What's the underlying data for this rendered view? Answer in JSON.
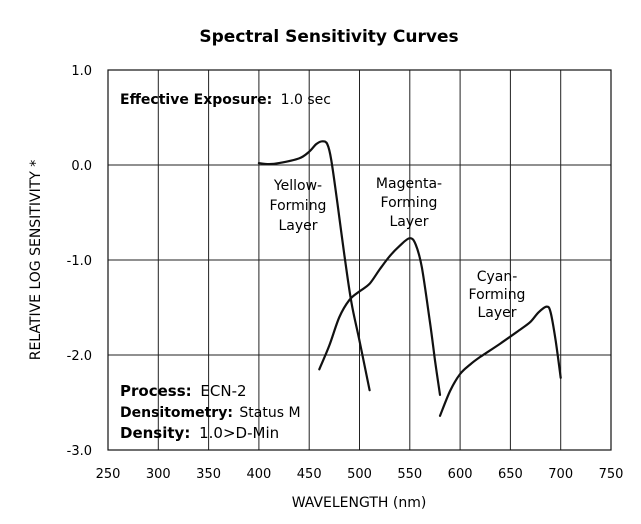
{
  "chart_data": {
    "type": "line",
    "title": "Spectral Sensitivity Curves",
    "xlabel": "WAVELENGTH (nm)",
    "ylabel": "RELATIVE LOG SENSITIVITY *",
    "xlim": [
      250,
      750
    ],
    "ylim": [
      -3.0,
      1.0
    ],
    "x_ticks": [
      "250",
      "300",
      "350",
      "400",
      "450",
      "500",
      "550",
      "600",
      "650",
      "700",
      "750"
    ],
    "y_ticks": [
      "1.0",
      "0.0",
      "-1.0",
      "-2.0",
      "-3.0"
    ],
    "grid": true,
    "annotations": {
      "exposure_label": "Effective Exposure:",
      "exposure_value": "1.0 sec",
      "process_label": "Process:",
      "process_value": "ECN-2",
      "densitometry_label": "Densitometry:",
      "densitometry_value": "Status M",
      "density_label": "Density:",
      "density_value": "1.0>D-Min"
    },
    "series": [
      {
        "label_lines": [
          "Yellow-",
          "Forming",
          "Layer"
        ],
        "points": [
          [
            400,
            0.02
          ],
          [
            410,
            0.01
          ],
          [
            420,
            0.02
          ],
          [
            440,
            0.07
          ],
          [
            450,
            0.14
          ],
          [
            457,
            0.22
          ],
          [
            463,
            0.25
          ],
          [
            468,
            0.22
          ],
          [
            472,
            0.05
          ],
          [
            478,
            -0.4
          ],
          [
            485,
            -0.95
          ],
          [
            492,
            -1.45
          ],
          [
            500,
            -1.85
          ],
          [
            510,
            -2.37
          ]
        ]
      },
      {
        "label_lines": [
          "Magenta-",
          "Forming",
          "Layer"
        ],
        "points": [
          [
            460,
            -2.15
          ],
          [
            470,
            -1.9
          ],
          [
            480,
            -1.6
          ],
          [
            490,
            -1.42
          ],
          [
            500,
            -1.33
          ],
          [
            510,
            -1.25
          ],
          [
            520,
            -1.1
          ],
          [
            530,
            -0.96
          ],
          [
            540,
            -0.85
          ],
          [
            550,
            -0.77
          ],
          [
            556,
            -0.84
          ],
          [
            562,
            -1.08
          ],
          [
            570,
            -1.65
          ],
          [
            575,
            -2.05
          ],
          [
            580,
            -2.42
          ]
        ]
      },
      {
        "label_lines": [
          "Cyan-",
          "Forming",
          "Layer"
        ],
        "points": [
          [
            580,
            -2.64
          ],
          [
            590,
            -2.38
          ],
          [
            600,
            -2.2
          ],
          [
            610,
            -2.1
          ],
          [
            620,
            -2.02
          ],
          [
            640,
            -1.88
          ],
          [
            660,
            -1.73
          ],
          [
            670,
            -1.65
          ],
          [
            678,
            -1.55
          ],
          [
            686,
            -1.49
          ],
          [
            690,
            -1.55
          ],
          [
            695,
            -1.85
          ],
          [
            700,
            -2.24
          ]
        ]
      }
    ]
  }
}
